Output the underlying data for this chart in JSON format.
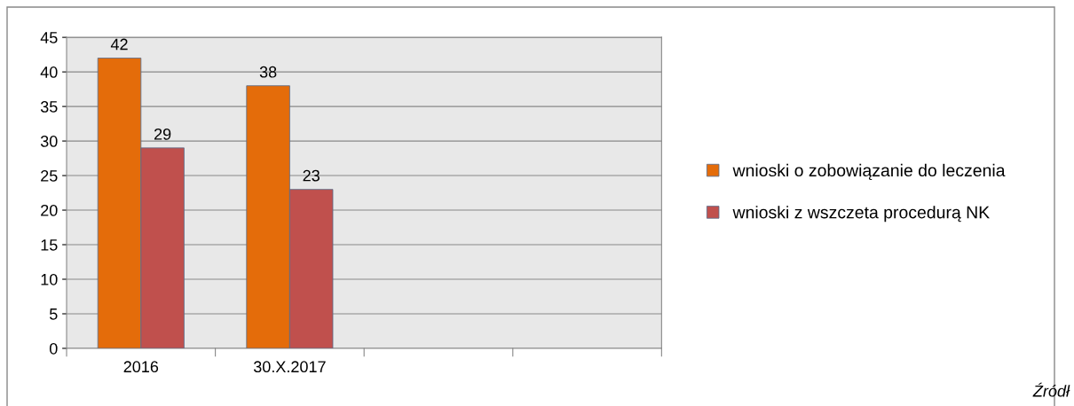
{
  "chart_data": {
    "type": "bar",
    "categories": [
      "2016",
      "30.X.2017",
      null,
      null
    ],
    "series": [
      {
        "name": "wnioski o zobowiązanie do leczenia",
        "color": "#e46c0a",
        "values": [
          42,
          38,
          null,
          null
        ]
      },
      {
        "name": "wnioski z wszczeta procedurą NK",
        "color": "#c0504d",
        "values": [
          29,
          23,
          null,
          null
        ]
      }
    ],
    "ylim": [
      0,
      45
    ],
    "yticks": [
      0,
      5,
      10,
      15,
      20,
      25,
      30,
      35,
      40,
      45
    ],
    "grid": "y",
    "legend": "right",
    "data_labels": true,
    "annotations": [
      "Źródł"
    ]
  }
}
